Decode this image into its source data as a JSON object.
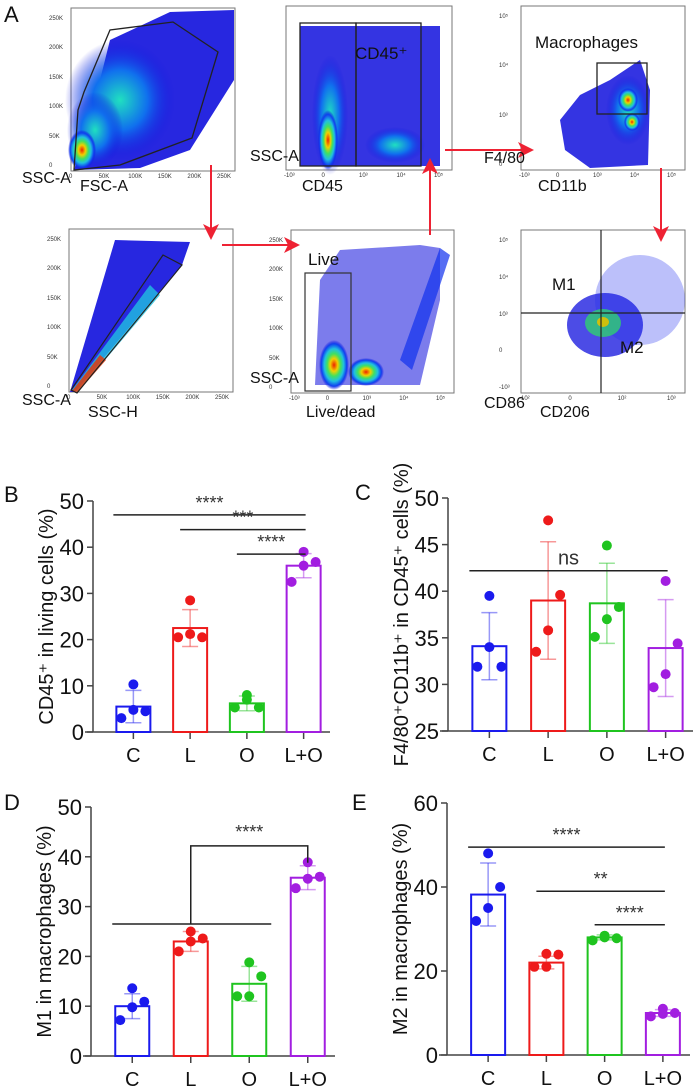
{
  "figure": {
    "panel_letters": {
      "A": "A",
      "B": "B",
      "C": "C",
      "D": "D",
      "E": "E"
    },
    "colors": {
      "C": "#1a1aee",
      "L": "#ee1a1a",
      "O": "#1fc41f",
      "L+O": "#a21ee0",
      "arrow": "#ee2233",
      "density_low": "#1010dd",
      "density_mid": "#20e0c0",
      "density_high": "#ee2200"
    }
  },
  "flow_panels": [
    {
      "id": "fsc-ssc",
      "xlabel": "FSC-A",
      "ylabel": "SSC-A",
      "gate_label": "",
      "xticks": [
        "0",
        "50K",
        "100K",
        "150K",
        "200K",
        "250K"
      ],
      "yticks": [
        "0",
        "50K",
        "100K",
        "150K",
        "200K",
        "250K"
      ]
    },
    {
      "id": "cd45",
      "xlabel": "CD45",
      "ylabel": "SSC-A",
      "gate_label": "CD45⁺",
      "xticks": [
        "-10³",
        "0",
        "10³",
        "10⁴",
        "10⁵"
      ],
      "yticks": []
    },
    {
      "id": "macrophages",
      "xlabel": "CD11b",
      "ylabel": "F4/80",
      "gate_label": "Macrophages",
      "xticks": [
        "-10³",
        "0",
        "10³",
        "10⁴",
        "10⁵"
      ],
      "yticks": [
        "0",
        "10³",
        "10⁴",
        "10⁵"
      ]
    },
    {
      "id": "singlets",
      "xlabel": "SSC-H",
      "ylabel": "SSC-A",
      "gate_label": "",
      "xticks": [
        "0",
        "50K",
        "100K",
        "150K",
        "200K",
        "250K"
      ],
      "yticks": [
        "0",
        "50K",
        "100K",
        "150K",
        "200K",
        "250K"
      ]
    },
    {
      "id": "live",
      "xlabel": "Live/dead",
      "ylabel": "SSC-A",
      "gate_label": "Live",
      "xticks": [
        "-10³",
        "0",
        "10³",
        "10⁴",
        "10⁵"
      ],
      "yticks": [
        "0",
        "50K",
        "100K",
        "150K",
        "200K",
        "250K"
      ]
    },
    {
      "id": "m1m2",
      "xlabel": "CD206",
      "ylabel": "CD86",
      "gate_label": "M1",
      "gate_label_2": "M2",
      "xticks": [
        "-10²",
        "0",
        "10²",
        "10³"
      ],
      "yticks": [
        "-10³",
        "0",
        "10³",
        "10⁴",
        "10⁵"
      ]
    }
  ],
  "chart_data": [
    {
      "panel": "B",
      "type": "bar",
      "ylabel": "CD45⁺ in living cells (%)",
      "categories": [
        "C",
        "L",
        "O",
        "L+O"
      ],
      "ylim": [
        0,
        50
      ],
      "yticks": [
        0,
        10,
        20,
        30,
        40,
        50
      ],
      "values": [
        5.5,
        22.5,
        6.2,
        36.0
      ],
      "sd": [
        3.5,
        4.0,
        1.6,
        2.6
      ],
      "points": [
        [
          3.0,
          4.8,
          4.5,
          10.3
        ],
        [
          20.5,
          21.2,
          20.5,
          28.5
        ],
        [
          5.3,
          7.0,
          5.3,
          8.0
        ],
        [
          32.5,
          36.0,
          36.8,
          39.0
        ]
      ],
      "significance": [
        {
          "from": "C",
          "to": "L+O",
          "label": "****",
          "y": 47.0
        },
        {
          "from": "L",
          "to": "L+O",
          "label": "***",
          "y": 43.8
        },
        {
          "from": "O",
          "to": "L+O",
          "label": "****",
          "y": 38.5
        }
      ]
    },
    {
      "panel": "C",
      "type": "bar",
      "ylabel": "F4/80⁺CD11b⁺ in CD45⁺ cells (%)",
      "categories": [
        "C",
        "L",
        "O",
        "L+O"
      ],
      "ylim": [
        25,
        50
      ],
      "yticks": [
        25,
        30,
        35,
        40,
        45,
        50
      ],
      "values": [
        34.1,
        39.0,
        38.7,
        33.9
      ],
      "sd": [
        3.6,
        6.3,
        4.3,
        5.2
      ],
      "points": [
        [
          31.9,
          34.0,
          31.9,
          39.5
        ],
        [
          33.5,
          35.8,
          39.6,
          47.6
        ],
        [
          35.1,
          37.0,
          38.3,
          44.9
        ],
        [
          29.7,
          31.1,
          34.4,
          41.1
        ]
      ],
      "significance": [
        {
          "from": "C",
          "to": "L+O",
          "label": "ns",
          "y": 42.2
        }
      ]
    },
    {
      "panel": "D",
      "type": "bar",
      "ylabel": "M1 in macrophages (%)",
      "categories": [
        "C",
        "L",
        "O",
        "L+O"
      ],
      "ylim": [
        0,
        50
      ],
      "yticks": [
        0,
        10,
        20,
        30,
        40,
        50
      ],
      "values": [
        10.0,
        23.0,
        14.5,
        35.8
      ],
      "sd": [
        2.5,
        2.0,
        3.5,
        2.4
      ],
      "points": [
        [
          7.2,
          9.8,
          10.9,
          13.6
        ],
        [
          21.0,
          23.0,
          23.6,
          25.0
        ],
        [
          12.0,
          12.0,
          16.0,
          18.8
        ],
        [
          33.7,
          35.6,
          36.0,
          38.9
        ]
      ],
      "significance": [
        {
          "from_group": [
            "C",
            "L",
            "O"
          ],
          "to": "L+O",
          "label": "****",
          "y": 42.2,
          "bracket_y": 26.5
        }
      ]
    },
    {
      "panel": "E",
      "type": "bar",
      "ylabel": "M2 in macrophages (%)",
      "categories": [
        "C",
        "L",
        "O",
        "L+O"
      ],
      "ylim": [
        0,
        60
      ],
      "yticks": [
        0,
        20,
        40,
        60
      ],
      "values": [
        38.2,
        22.0,
        28.0,
        10.0
      ],
      "sd": [
        7.5,
        1.5,
        0.6,
        0.8
      ],
      "points": [
        [
          31.9,
          35.0,
          40.0,
          48.0
        ],
        [
          21.0,
          21.0,
          23.9,
          24.1
        ],
        [
          27.3,
          28.0,
          27.8,
          28.4
        ],
        [
          9.2,
          9.8,
          10.0,
          11.0
        ]
      ],
      "significance": [
        {
          "from": "C",
          "to": "L+O",
          "label": "****",
          "y": 49.5
        },
        {
          "from": "L",
          "to": "L+O",
          "label": "**",
          "y": 39.0
        },
        {
          "from": "O",
          "to": "L+O",
          "label": "****",
          "y": 31.0
        }
      ]
    }
  ]
}
